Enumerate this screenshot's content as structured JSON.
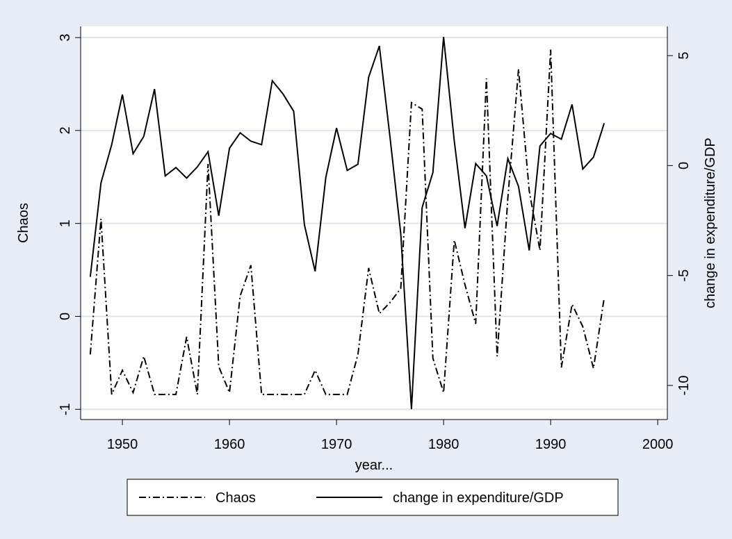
{
  "chart_data": {
    "type": "line",
    "x": [
      1947,
      1948,
      1949,
      1950,
      1951,
      1952,
      1953,
      1954,
      1955,
      1956,
      1957,
      1958,
      1959,
      1960,
      1961,
      1962,
      1963,
      1964,
      1965,
      1966,
      1967,
      1968,
      1969,
      1970,
      1971,
      1972,
      1973,
      1974,
      1975,
      1976,
      1977,
      1978,
      1979,
      1980,
      1981,
      1982,
      1983,
      1984,
      1985,
      1986,
      1987,
      1988,
      1989,
      1990,
      1991,
      1992,
      1993,
      1994,
      1995
    ],
    "xlabel": "year...",
    "ylabel": "Chaos",
    "y2label": "change in expenditure/GDP",
    "series": [
      {
        "name": "Chaos",
        "color": "#000000",
        "dash": "dash-dot",
        "values": [
          -0.41,
          1.05,
          -0.84,
          -0.58,
          -0.82,
          -0.43,
          -0.84,
          -0.84,
          -0.84,
          -0.22,
          -0.84,
          1.64,
          -0.54,
          -0.82,
          0.22,
          0.55,
          -0.84,
          -0.84,
          -0.84,
          -0.84,
          -0.84,
          -0.58,
          -0.84,
          -0.84,
          -0.84,
          -0.41,
          0.52,
          0.03,
          0.15,
          0.3,
          2.3,
          2.23,
          -0.45,
          -0.82,
          0.82,
          0.34,
          -0.08,
          2.56,
          -0.43,
          1.27,
          2.66,
          1.35,
          0.71,
          2.87,
          -0.55,
          0.13,
          -0.11,
          -0.56,
          0.2
        ]
      },
      {
        "name": "change in expenditure/GDP",
        "color": "#000000",
        "dash": "solid",
        "axis": "y2",
        "values": [
          -5.06,
          -0.79,
          0.95,
          3.23,
          0.54,
          1.33,
          3.48,
          -0.47,
          -0.09,
          -0.57,
          -0.06,
          0.63,
          -2.28,
          0.79,
          1.49,
          1.11,
          0.95,
          3.86,
          3.26,
          2.47,
          -2.69,
          -4.81,
          -0.54,
          1.71,
          -0.22,
          0.06,
          4.02,
          5.44,
          1.27,
          -3.1,
          -11.08,
          -1.9,
          -0.32,
          5.85,
          1.11,
          -2.85,
          0.09,
          -0.47,
          -2.75,
          0.32,
          -0.95,
          -3.86,
          0.89,
          1.46,
          1.2,
          2.78,
          -0.16,
          0.38,
          1.93
        ]
      }
    ],
    "xlim": [
      1946.1,
      2000.9
    ],
    "xticks": [
      1950,
      1960,
      1970,
      1980,
      1990,
      2000
    ],
    "ylim": [
      -1.11,
      3.12
    ],
    "yticks": [
      -1,
      0,
      1,
      2,
      3
    ],
    "y2lim": [
      -11.55,
      6.33
    ],
    "y2ticks": [
      -10,
      -5,
      0,
      5
    ],
    "grid": true,
    "legend": "bottom"
  }
}
